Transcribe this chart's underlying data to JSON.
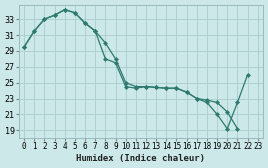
{
  "xlabel": "Humidex (Indice chaleur)",
  "bg_color": "#cce8e8",
  "line_color": "#2d7a6e",
  "grid_color": "#aacccc",
  "xlim": [
    -0.5,
    23.5
  ],
  "ylim": [
    18.0,
    34.8
  ],
  "xticks": [
    0,
    1,
    2,
    3,
    4,
    5,
    6,
    7,
    8,
    9,
    10,
    11,
    12,
    13,
    14,
    15,
    16,
    17,
    18,
    19,
    20,
    21,
    22,
    23
  ],
  "yticks": [
    19,
    21,
    23,
    25,
    27,
    29,
    31,
    33
  ],
  "series1_x": [
    0,
    1,
    2,
    3,
    4,
    5,
    6,
    7,
    8,
    9,
    10,
    11,
    12,
    13,
    14,
    15,
    16,
    17,
    18,
    19,
    20,
    21,
    22
  ],
  "series1_y": [
    29.5,
    31.5,
    33.0,
    33.5,
    34.2,
    33.8,
    32.5,
    31.5,
    30.0,
    28.0,
    25.0,
    24.5,
    24.5,
    24.4,
    24.3,
    24.3,
    23.8,
    23.0,
    22.5,
    21.0,
    19.2,
    22.5,
    26.0
  ],
  "series2_x": [
    0,
    1,
    2,
    3,
    4,
    5,
    6,
    7,
    8,
    9,
    10,
    11,
    12,
    13,
    14,
    15,
    16,
    17,
    18,
    19,
    20,
    21
  ],
  "series2_y": [
    29.5,
    31.5,
    33.0,
    33.5,
    34.2,
    33.8,
    32.5,
    31.5,
    28.0,
    27.5,
    24.5,
    24.3,
    24.5,
    24.4,
    24.3,
    24.3,
    23.8,
    23.0,
    22.8,
    22.5,
    21.3,
    19.2
  ]
}
